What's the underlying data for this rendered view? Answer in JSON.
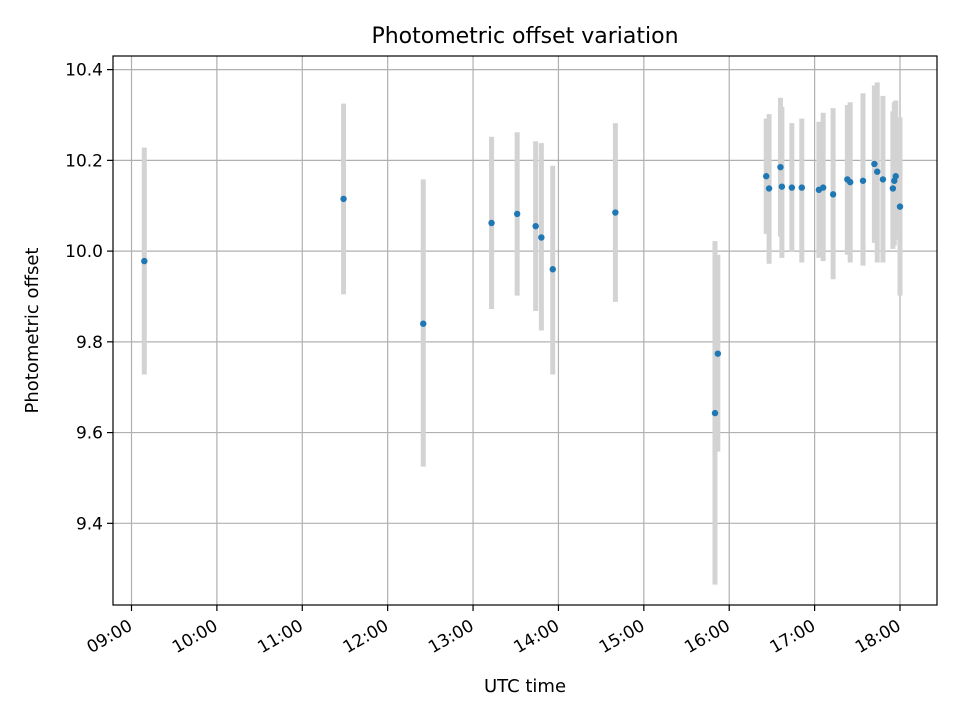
{
  "chart_data": {
    "type": "scatter",
    "title": "Photometric offset variation",
    "xlabel": "UTC time",
    "ylabel": "Photometric offset",
    "x_ticks": [
      "09:00",
      "10:00",
      "11:00",
      "12:00",
      "13:00",
      "14:00",
      "15:00",
      "16:00",
      "17:00",
      "18:00"
    ],
    "y_ticks": [
      "9.4",
      "9.6",
      "9.8",
      "10.0",
      "10.2",
      "10.4"
    ],
    "xlim": [
      "08:47",
      "18:26"
    ],
    "ylim": [
      9.22,
      10.43
    ],
    "grid": true,
    "colors": {
      "points": "#1f77b4",
      "errorbars": "#d3d3d3",
      "grid": "#b0b0b0"
    },
    "series": [
      {
        "points": [
          {
            "x": "09:09",
            "y": 9.978,
            "low": 9.728,
            "high": 10.228
          },
          {
            "x": "11:29",
            "y": 10.115,
            "low": 9.905,
            "high": 10.325
          },
          {
            "x": "12:25",
            "y": 9.84,
            "low": 9.525,
            "high": 10.158
          },
          {
            "x": "13:13",
            "y": 10.062,
            "low": 9.872,
            "high": 10.252
          },
          {
            "x": "13:31",
            "y": 10.082,
            "low": 9.902,
            "high": 10.262
          },
          {
            "x": "13:44",
            "y": 10.055,
            "low": 9.868,
            "high": 10.242
          },
          {
            "x": "13:48",
            "y": 10.03,
            "low": 9.825,
            "high": 10.238
          },
          {
            "x": "13:56",
            "y": 9.96,
            "low": 9.728,
            "high": 10.188
          },
          {
            "x": "14:40",
            "y": 10.085,
            "low": 9.888,
            "high": 10.282
          },
          {
            "x": "15:50",
            "y": 9.643,
            "low": 9.265,
            "high": 10.022
          },
          {
            "x": "15:52",
            "y": 9.774,
            "low": 9.558,
            "high": 9.992
          },
          {
            "x": "16:26",
            "y": 10.165,
            "low": 10.038,
            "high": 10.292
          },
          {
            "x": "16:28",
            "y": 10.138,
            "low": 9.972,
            "high": 10.302
          },
          {
            "x": "16:36",
            "y": 10.185,
            "low": 10.032,
            "high": 10.338
          },
          {
            "x": "16:37",
            "y": 10.142,
            "low": 9.985,
            "high": 10.318
          },
          {
            "x": "16:44",
            "y": 10.14,
            "low": 9.998,
            "high": 10.282
          },
          {
            "x": "16:51",
            "y": 10.14,
            "low": 9.975,
            "high": 10.292
          },
          {
            "x": "17:03",
            "y": 10.135,
            "low": 9.985,
            "high": 10.285
          },
          {
            "x": "17:06",
            "y": 10.14,
            "low": 9.978,
            "high": 10.305
          },
          {
            "x": "17:13",
            "y": 10.125,
            "low": 9.938,
            "high": 10.315
          },
          {
            "x": "17:23",
            "y": 10.158,
            "low": 9.992,
            "high": 10.322
          },
          {
            "x": "17:25",
            "y": 10.152,
            "low": 9.975,
            "high": 10.328
          },
          {
            "x": "17:34",
            "y": 10.155,
            "low": 9.968,
            "high": 10.348
          },
          {
            "x": "17:42",
            "y": 10.192,
            "low": 10.018,
            "high": 10.365
          },
          {
            "x": "17:44",
            "y": 10.175,
            "low": 9.975,
            "high": 10.372
          },
          {
            "x": "17:48",
            "y": 10.158,
            "low": 9.975,
            "high": 10.342
          },
          {
            "x": "17:55",
            "y": 10.138,
            "low": 10.005,
            "high": 10.308
          },
          {
            "x": "17:56",
            "y": 10.155,
            "low": 10.012,
            "high": 10.328
          },
          {
            "x": "17:57",
            "y": 10.165,
            "low": 10.025,
            "high": 10.332
          },
          {
            "x": "18:00",
            "y": 10.098,
            "low": 9.902,
            "high": 10.295
          }
        ]
      }
    ]
  }
}
